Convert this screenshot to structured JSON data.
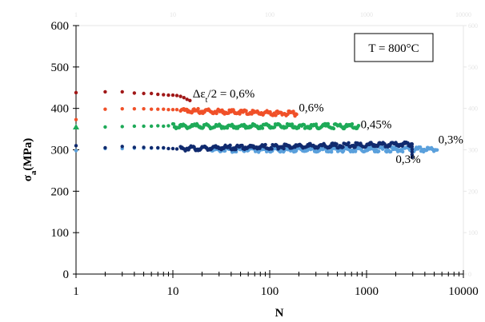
{
  "chart_data": {
    "type": "scatter",
    "title": "",
    "xlabel": "N",
    "ylabel": "σ",
    "ylabel_subscript": "a",
    "ylabel_unit": "(MPa)",
    "x_scale": "log",
    "xlim": [
      1,
      10000
    ],
    "ylim": [
      0,
      600
    ],
    "x_ticks": [
      {
        "value": 1,
        "label": "1"
      },
      {
        "value": 10,
        "label": "10"
      },
      {
        "value": 100,
        "label": "100"
      },
      {
        "value": 1000,
        "label": "1000"
      },
      {
        "value": 10000,
        "label": "10000"
      }
    ],
    "y_ticks": [
      {
        "value": 0,
        "label": "0"
      },
      {
        "value": 100,
        "label": "100"
      },
      {
        "value": 200,
        "label": "200"
      },
      {
        "value": 300,
        "label": "300"
      },
      {
        "value": 400,
        "label": "400"
      },
      {
        "value": 500,
        "label": "500"
      },
      {
        "value": 600,
        "label": "600"
      }
    ],
    "secondary_x_ticks": [
      {
        "value": 1,
        "label": "1"
      },
      {
        "value": 10,
        "label": "10"
      },
      {
        "value": 100,
        "label": "100"
      },
      {
        "value": 1000,
        "label": "1000"
      },
      {
        "value": 10000,
        "label": "10000"
      }
    ],
    "secondary_y_ticks": [
      {
        "value": 0,
        "label": "0"
      },
      {
        "value": 100,
        "label": "100"
      },
      {
        "value": 200,
        "label": "200"
      },
      {
        "value": 300,
        "label": "300"
      },
      {
        "value": 400,
        "label": "400"
      },
      {
        "value": 500,
        "label": "500"
      },
      {
        "value": 600,
        "label": "600"
      }
    ],
    "grid": false,
    "legend": "none",
    "temperature_box": "T = 800°C",
    "series": [
      {
        "color": "#a01818",
        "label_parts": [
          "Δε",
          "t",
          "/2 = 0,6%"
        ],
        "label_anchor": {
          "x": 16,
          "y": 426
        },
        "points": [
          [
            1,
            438
          ],
          [
            2,
            440
          ],
          [
            3,
            440
          ],
          [
            4,
            437
          ],
          [
            5,
            436
          ],
          [
            6,
            436
          ],
          [
            7,
            434
          ],
          [
            8,
            433
          ],
          [
            9,
            432
          ],
          [
            10,
            432
          ],
          [
            11,
            431
          ],
          [
            12,
            429
          ],
          [
            13,
            426
          ],
          [
            14,
            422
          ],
          [
            15,
            419
          ]
        ]
      },
      {
        "color": "#f05028",
        "label": "0,6%",
        "label_anchor": {
          "x": 200,
          "y": 393
        },
        "from": 12,
        "to": 190,
        "start_value": 395,
        "end_value": 387,
        "points": [
          [
            1,
            373
          ],
          [
            2,
            398
          ],
          [
            3,
            399
          ],
          [
            4,
            399
          ],
          [
            5,
            399
          ],
          [
            6,
            398
          ],
          [
            7,
            398
          ],
          [
            8,
            398
          ],
          [
            9,
            397
          ],
          [
            10,
            397
          ],
          [
            11,
            397
          ]
        ]
      },
      {
        "color": "#1eaa58",
        "label": "0,45%",
        "label_anchor": {
          "x": 870,
          "y": 352
        },
        "from": 10,
        "to": 820,
        "start_value": 357,
        "end_value": 357,
        "marker_at_1": "triangle",
        "points": [
          [
            1,
            355
          ],
          [
            2,
            355
          ],
          [
            3,
            356
          ],
          [
            4,
            357
          ],
          [
            5,
            357
          ],
          [
            6,
            357
          ],
          [
            7,
            358
          ],
          [
            8,
            357
          ],
          [
            9,
            358
          ]
        ]
      },
      {
        "color": "#5aa0dc",
        "label": "0,3%",
        "label_anchor": {
          "x": 5500,
          "y": 315
        },
        "from": 25,
        "to": 5400,
        "start_value": 300,
        "end_value": 301,
        "points": [
          [
            1,
            298
          ],
          [
            2,
            303
          ],
          [
            3,
            303
          ],
          [
            4,
            304
          ],
          [
            5,
            304
          ],
          [
            6,
            304
          ],
          [
            7,
            304
          ],
          [
            8,
            304
          ]
        ]
      },
      {
        "color": "#102a6e",
        "label": "0,3%",
        "label_anchor": {
          "x": 2000,
          "y": 268
        },
        "from": 12,
        "to": 2950,
        "start_value": 303,
        "end_value": 314,
        "drop_to": 282,
        "points": [
          [
            1,
            310
          ],
          [
            2,
            305
          ],
          [
            3,
            308
          ],
          [
            4,
            306
          ],
          [
            5,
            306
          ],
          [
            6,
            305
          ],
          [
            7,
            305
          ],
          [
            8,
            305
          ],
          [
            9,
            303
          ],
          [
            10,
            303
          ],
          [
            11,
            302
          ]
        ]
      }
    ]
  }
}
